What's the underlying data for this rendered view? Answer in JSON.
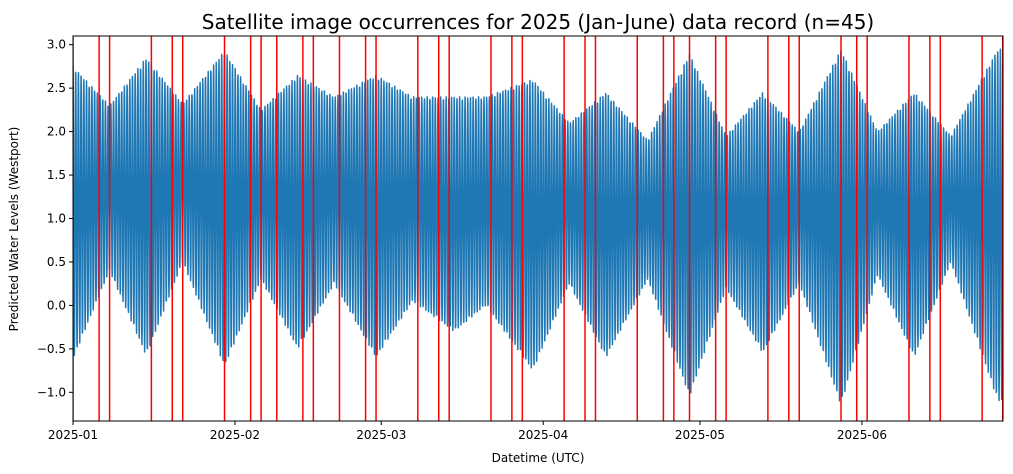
{
  "chart_data": {
    "type": "line",
    "title": "Satellite image occurrences for 2025 (Jan-June) data record (n=45)",
    "xlabel": "Datetime (UTC)",
    "ylabel": "Predicted Water Levels (Westport)",
    "xlim": [
      "2025-01-01",
      "2025-06-28"
    ],
    "ylim": [
      -1.33,
      3.1
    ],
    "x_ticks": [
      "2025-01",
      "2025-02",
      "2025-03",
      "2025-04",
      "2025-05",
      "2025-06"
    ],
    "x_tick_dates": [
      "2025-01-01",
      "2025-02-01",
      "2025-03-01",
      "2025-04-01",
      "2025-05-01",
      "2025-06-01"
    ],
    "y_ticks": [
      -1.0,
      -0.5,
      0.0,
      0.5,
      1.0,
      1.5,
      2.0,
      2.5,
      3.0
    ],
    "y_tick_labels": [
      "−1.0",
      "−0.5",
      "0.0",
      "0.5",
      "1.0",
      "1.5",
      "2.0",
      "2.5",
      "3.0"
    ],
    "series": [
      {
        "color": "#1f77b4",
        "tide_model": {
          "mean_level": 1.1,
          "semidiurnal_period_hours": 12.42,
          "spring_neap_period_days": 14.77,
          "first_spring_tide": "2025-01-01"
        },
        "high_water_envelope": [
          {
            "x": "2025-01-01",
            "y": 2.75
          },
          {
            "x": "2025-01-08",
            "y": 2.3
          },
          {
            "x": "2025-01-15",
            "y": 2.85
          },
          {
            "x": "2025-01-22",
            "y": 2.32
          },
          {
            "x": "2025-01-30",
            "y": 2.93
          },
          {
            "x": "2025-02-06",
            "y": 2.25
          },
          {
            "x": "2025-02-13",
            "y": 2.65
          },
          {
            "x": "2025-02-20",
            "y": 2.4
          },
          {
            "x": "2025-02-28",
            "y": 2.65
          },
          {
            "x": "2025-03-07",
            "y": 2.4
          },
          {
            "x": "2025-03-15",
            "y": 2.4
          },
          {
            "x": "2025-03-21",
            "y": 2.4
          },
          {
            "x": "2025-03-30",
            "y": 2.6
          },
          {
            "x": "2025-04-06",
            "y": 2.1
          },
          {
            "x": "2025-04-13",
            "y": 2.45
          },
          {
            "x": "2025-04-21",
            "y": 1.9
          },
          {
            "x": "2025-04-29",
            "y": 2.9
          },
          {
            "x": "2025-05-06",
            "y": 1.95
          },
          {
            "x": "2025-05-13",
            "y": 2.45
          },
          {
            "x": "2025-05-20",
            "y": 2.0
          },
          {
            "x": "2025-05-28",
            "y": 2.95
          },
          {
            "x": "2025-06-04",
            "y": 2.0
          },
          {
            "x": "2025-06-11",
            "y": 2.45
          },
          {
            "x": "2025-06-18",
            "y": 1.95
          },
          {
            "x": "2025-06-27",
            "y": 2.95
          }
        ],
        "low_water_envelope": [
          {
            "x": "2025-01-01",
            "y": -0.62
          },
          {
            "x": "2025-01-08",
            "y": 0.4
          },
          {
            "x": "2025-01-15",
            "y": -0.58
          },
          {
            "x": "2025-01-22",
            "y": 0.5
          },
          {
            "x": "2025-01-30",
            "y": -0.7
          },
          {
            "x": "2025-02-06",
            "y": 0.3
          },
          {
            "x": "2025-02-13",
            "y": -0.5
          },
          {
            "x": "2025-02-20",
            "y": 0.25
          },
          {
            "x": "2025-02-28",
            "y": -0.6
          },
          {
            "x": "2025-03-07",
            "y": 0.05
          },
          {
            "x": "2025-03-15",
            "y": -0.3
          },
          {
            "x": "2025-03-21",
            "y": 0.0
          },
          {
            "x": "2025-03-30",
            "y": -0.75
          },
          {
            "x": "2025-04-06",
            "y": 0.25
          },
          {
            "x": "2025-04-13",
            "y": -0.6
          },
          {
            "x": "2025-04-21",
            "y": 0.3
          },
          {
            "x": "2025-04-29",
            "y": -1.05
          },
          {
            "x": "2025-05-06",
            "y": 0.2
          },
          {
            "x": "2025-05-13",
            "y": -0.55
          },
          {
            "x": "2025-05-20",
            "y": 0.25
          },
          {
            "x": "2025-05-28",
            "y": -1.15
          },
          {
            "x": "2025-06-04",
            "y": 0.35
          },
          {
            "x": "2025-06-11",
            "y": -0.6
          },
          {
            "x": "2025-06-18",
            "y": 0.5
          },
          {
            "x": "2025-06-27",
            "y": -1.1
          }
        ]
      }
    ],
    "image_dates": [
      "2025-01-01",
      "2025-01-06",
      "2025-01-08",
      "2025-01-16",
      "2025-01-20",
      "2025-01-22",
      "2025-01-30",
      "2025-02-04",
      "2025-02-06",
      "2025-02-09",
      "2025-02-14",
      "2025-02-16",
      "2025-02-21",
      "2025-02-26",
      "2025-02-28",
      "2025-03-08",
      "2025-03-12",
      "2025-03-14",
      "2025-03-22",
      "2025-03-26",
      "2025-03-28",
      "2025-04-05",
      "2025-04-09",
      "2025-04-11",
      "2025-04-19",
      "2025-04-24",
      "2025-04-26",
      "2025-04-29",
      "2025-05-04",
      "2025-05-06",
      "2025-05-14",
      "2025-05-18",
      "2025-05-20",
      "2025-05-28",
      "2025-05-31",
      "2025-06-02",
      "2025-06-10",
      "2025-06-14",
      "2025-06-16",
      "2025-06-24",
      "2025-06-28",
      "2025-06-28",
      "2025-06-28",
      "2025-06-28",
      "2025-06-28"
    ],
    "image_line_color": "#ff0000",
    "grid": false
  }
}
